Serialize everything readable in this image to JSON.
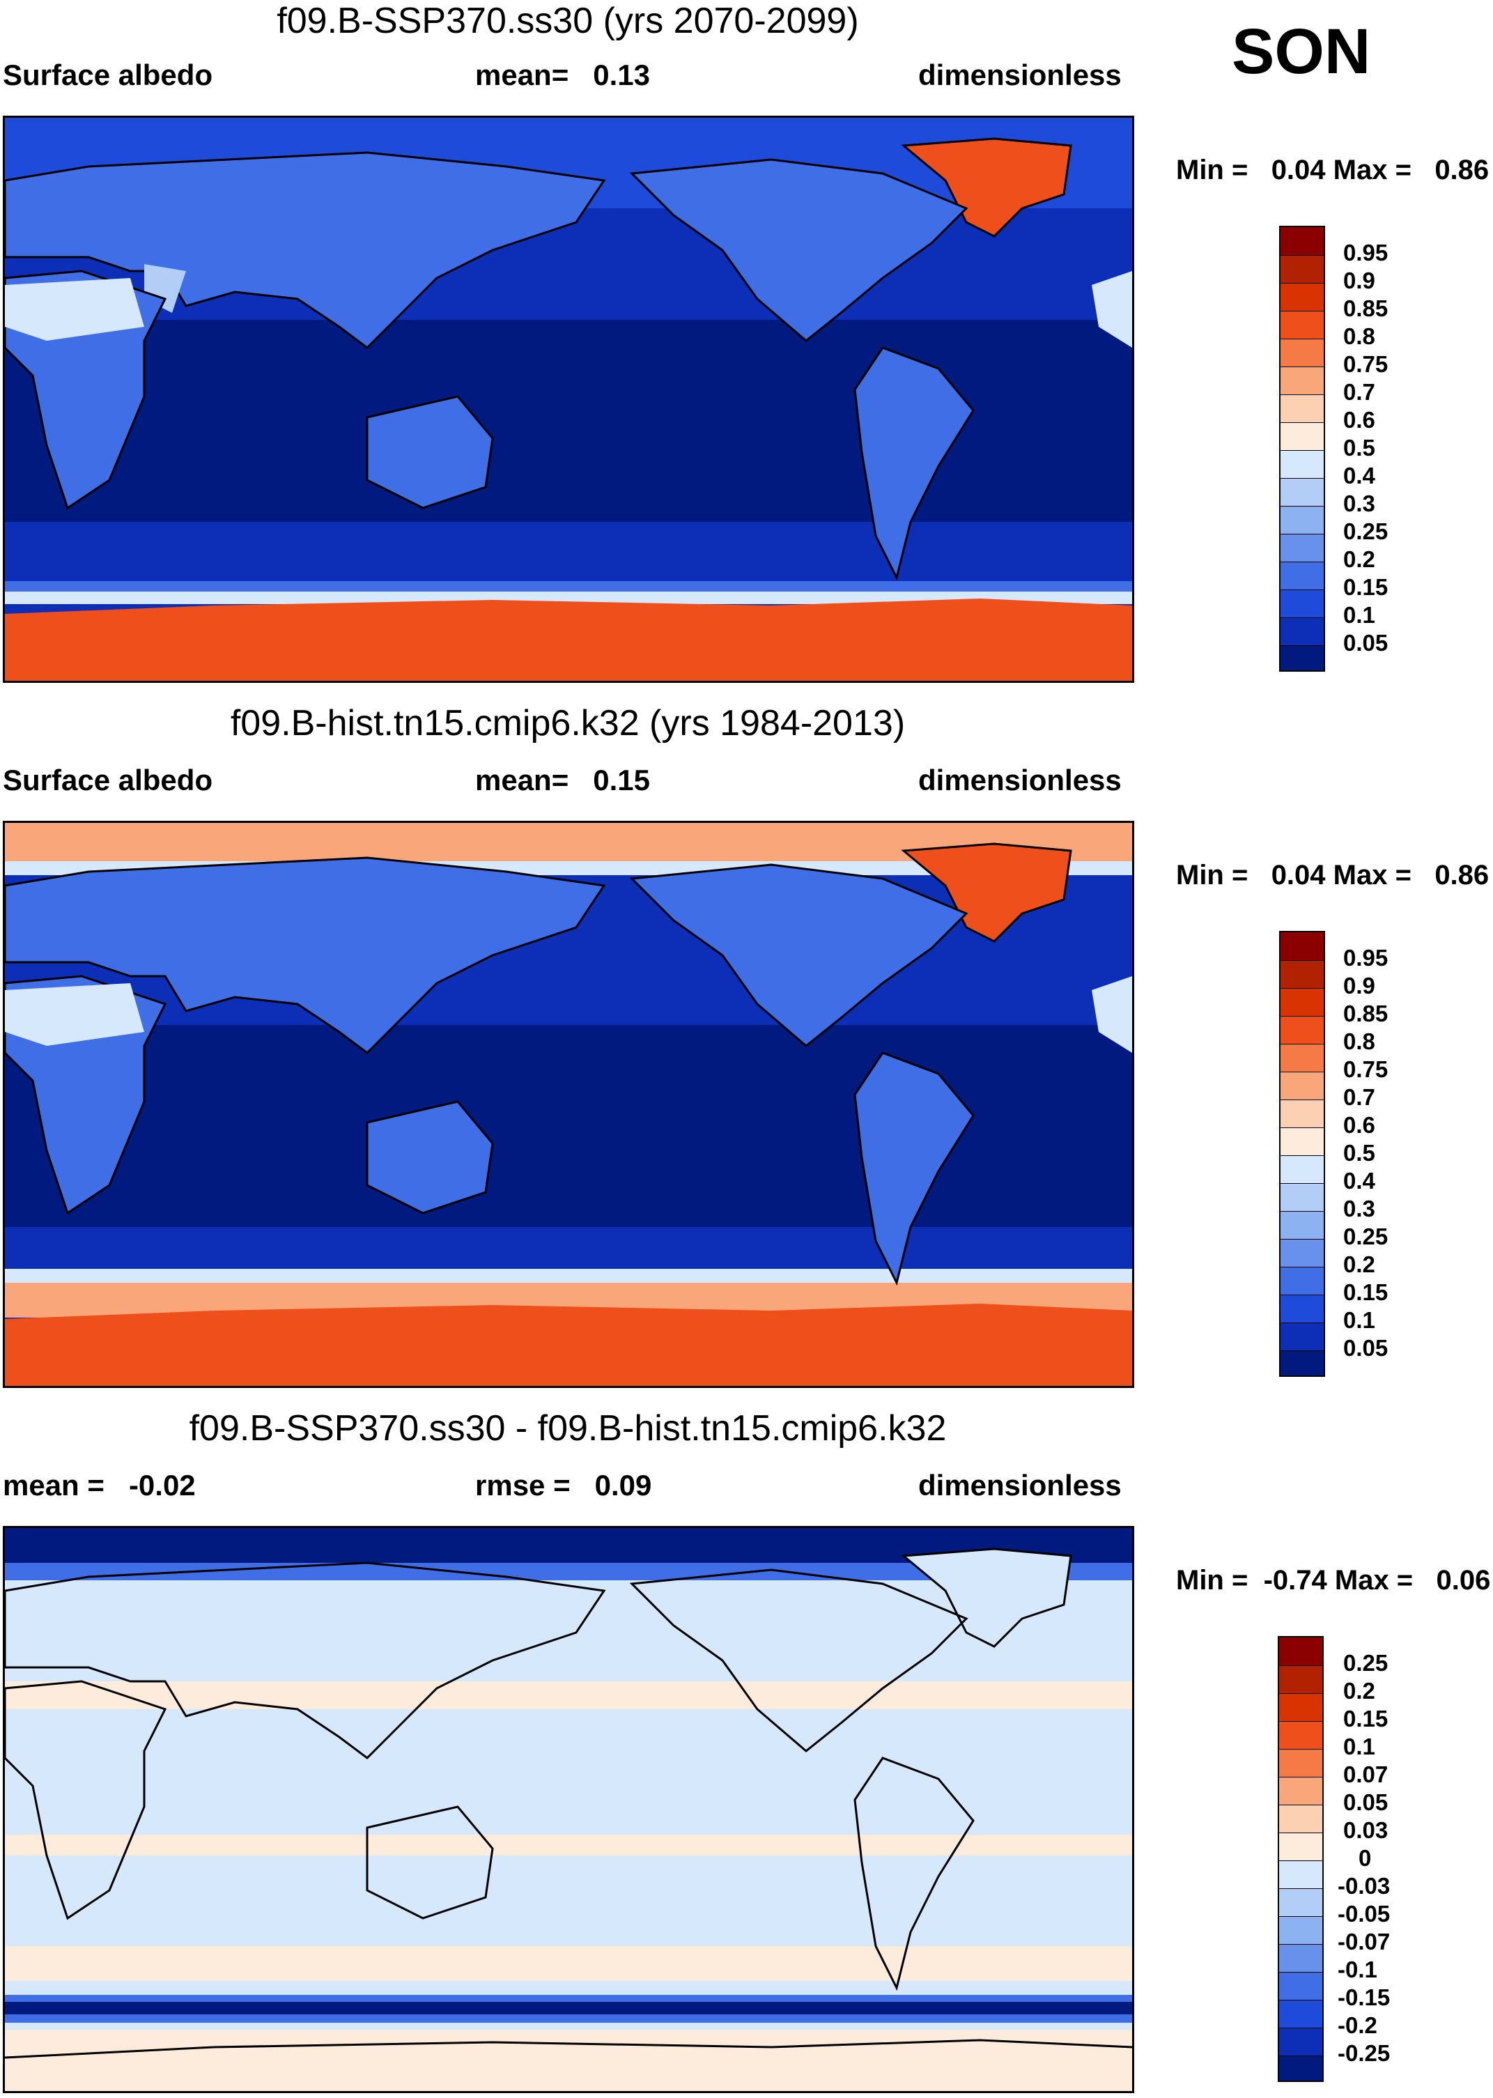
{
  "season": "SON",
  "panels": [
    {
      "title": "f09.B-SSP370.ss30 (yrs 2070-2099)",
      "left_label": "Surface albedo",
      "center_label": "mean=",
      "center_value": "0.13",
      "right_label": "dimensionless",
      "min_label": "Min =",
      "min_value": "0.04",
      "max_label": "Max =",
      "max_value": "0.86",
      "colorbar_labels": [
        "0.95",
        "0.9",
        "0.85",
        "0.8",
        "0.75",
        "0.7",
        "0.6",
        "0.5",
        "0.4",
        "0.3",
        "0.25",
        "0.2",
        "0.15",
        "0.1",
        "0.05"
      ]
    },
    {
      "title": "f09.B-hist.tn15.cmip6.k32 (yrs 1984-2013)",
      "left_label": "Surface albedo",
      "center_label": "mean=",
      "center_value": "0.15",
      "right_label": "dimensionless",
      "min_label": "Min =",
      "min_value": "0.04",
      "max_label": "Max =",
      "max_value": "0.86",
      "colorbar_labels": [
        "0.95",
        "0.9",
        "0.85",
        "0.8",
        "0.75",
        "0.7",
        "0.6",
        "0.5",
        "0.4",
        "0.3",
        "0.25",
        "0.2",
        "0.15",
        "0.1",
        "0.05"
      ]
    },
    {
      "title": "f09.B-SSP370.ss30 - f09.B-hist.tn15.cmip6.k32",
      "left_label": "mean =",
      "left_value": "-0.02",
      "center_label": "rmse =",
      "center_value": "0.09",
      "right_label": "dimensionless",
      "min_label": "Min =",
      "min_value": "-0.74",
      "max_label": "Max =",
      "max_value": "0.06",
      "colorbar_labels": [
        "0.25",
        "0.2",
        "0.15",
        "0.1",
        "0.07",
        "0.05",
        "0.03",
        "0",
        "-0.03",
        "-0.05",
        "-0.07",
        "-0.1",
        "-0.15",
        "-0.2",
        "-0.25"
      ]
    }
  ],
  "colors": {
    "abs_scale": [
      "#8b0000",
      "#b22200",
      "#d83300",
      "#ef4f1a",
      "#f57a45",
      "#f9a77a",
      "#fcd1b3",
      "#fdecdc",
      "#d6e8fb",
      "#b2cef7",
      "#8db2f2",
      "#6891ec",
      "#3f6ee6",
      "#1e4bd9",
      "#0d2fb8",
      "#001a80"
    ],
    "diff_scale": [
      "#8b0000",
      "#b22200",
      "#d83300",
      "#ef4f1a",
      "#f57a45",
      "#f9a77a",
      "#fcd1b3",
      "#fdecdc",
      "#d6e8fb",
      "#b2cef7",
      "#8db2f2",
      "#6891ec",
      "#3f6ee6",
      "#1e4bd9",
      "#0d2fb8",
      "#001a80"
    ]
  }
}
